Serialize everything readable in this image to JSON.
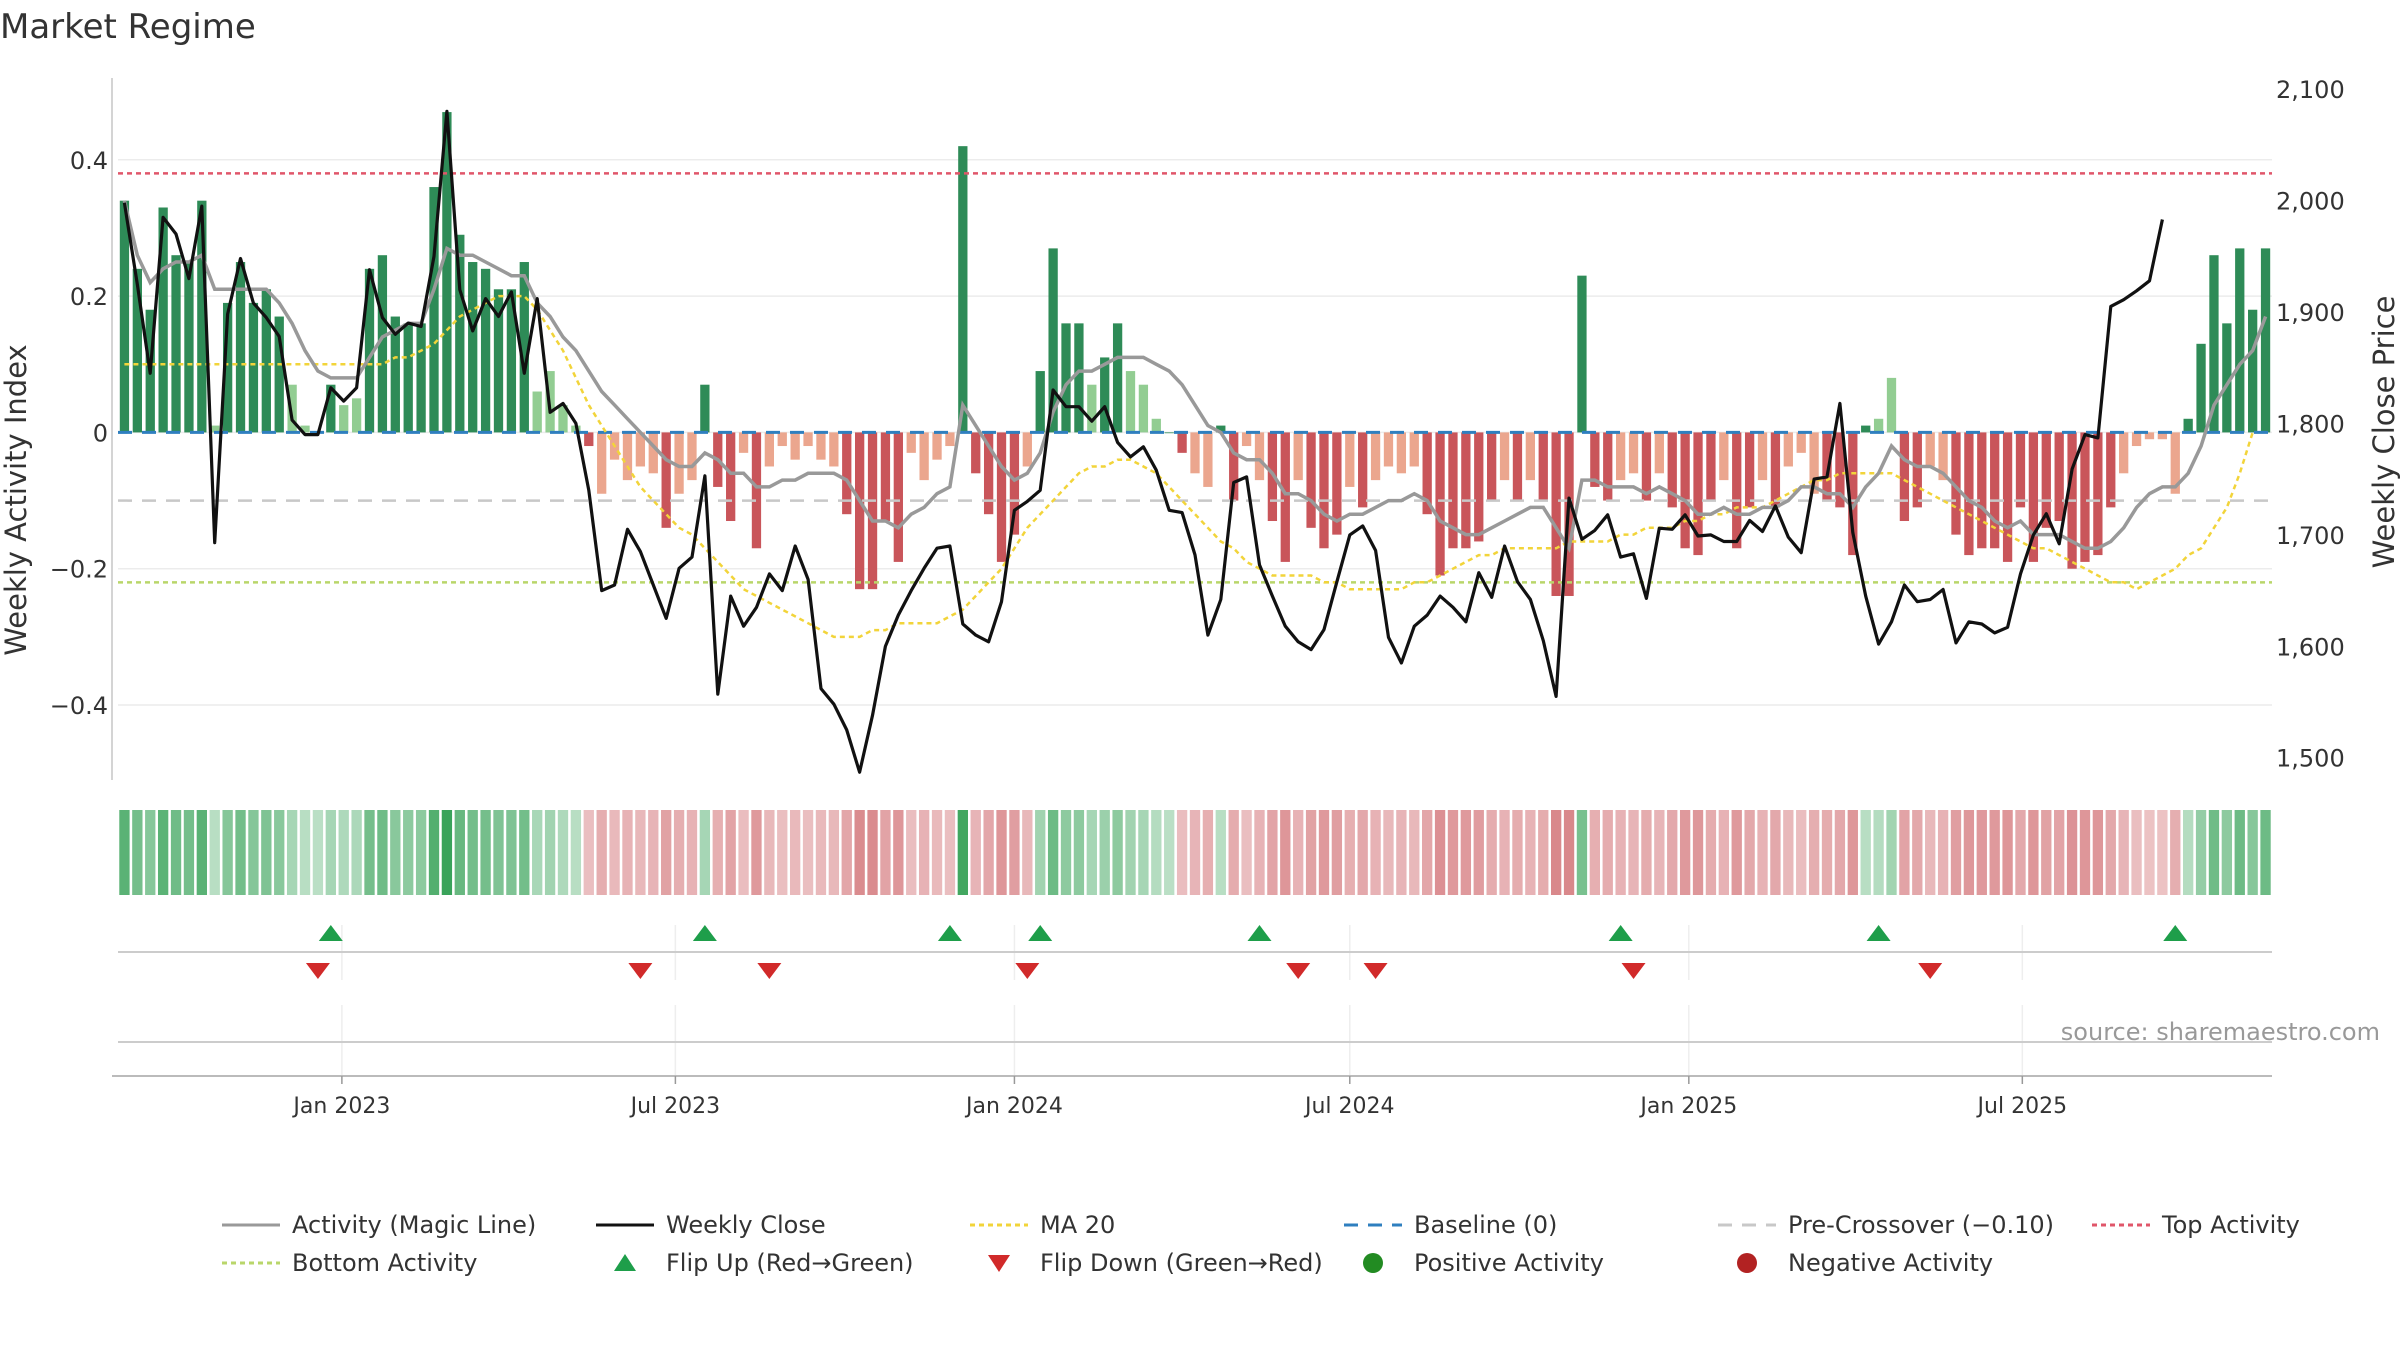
{
  "title": "Market Regime",
  "source": "source: sharemaestro.com",
  "colors": {
    "posStrong": "#2e8b57",
    "posLight": "#7fc47f",
    "negStrong": "#c9555a",
    "negLight": "#e8967a",
    "close": "#111111",
    "magic": "#999999",
    "ma": "#f2d43a",
    "baseline": "#2f7fbf",
    "preCross": "#c8c8c8",
    "top": "#e0566a",
    "bottom": "#b9d66a",
    "flipUp": "#1e9e4a",
    "flipDown": "#d12a2a"
  },
  "chart_data": {
    "type": "bar",
    "title": "Market Regime",
    "x_axis": {
      "start": "2022-09-05",
      "frequency": "weekly",
      "tick_labels": [
        "Jan 2023",
        "Jul 2023",
        "Jan 2024",
        "Jul 2024",
        "Jan 2025",
        "Jul 2025"
      ],
      "tick_dates": [
        "2023-01-01",
        "2023-07-01",
        "2024-01-01",
        "2024-07-01",
        "2025-01-01",
        "2025-07-01"
      ]
    },
    "y_left": {
      "label": "Weekly Activity Index",
      "range": [
        -0.51,
        0.52
      ],
      "ticks": [
        0.4,
        0.2,
        0,
        -0.2,
        -0.4
      ],
      "tick_labels": [
        "0.4",
        "0.2",
        "0",
        "−0.2",
        "−0.4"
      ]
    },
    "y_right": {
      "label": "Weekly Close Price",
      "range": [
        1480,
        2110
      ],
      "ticks": [
        2100,
        2000,
        1900,
        1800,
        1700,
        1600,
        1500
      ],
      "tick_labels": [
        "2,100",
        "2,000",
        "1,900",
        "1,800",
        "1,700",
        "1,600",
        "1,500"
      ]
    },
    "reference_lines": {
      "top": 0.38,
      "bottom": -0.22,
      "baseline": 0,
      "pre_crossover": -0.1
    },
    "activity": [
      0.34,
      0.24,
      0.18,
      0.33,
      0.26,
      0.25,
      0.34,
      0.01,
      0.19,
      0.25,
      0.19,
      0.21,
      0.17,
      0.07,
      0.01,
      0.0,
      0.07,
      0.04,
      0.05,
      0.24,
      0.26,
      0.17,
      0.16,
      0.16,
      0.36,
      0.47,
      0.29,
      0.25,
      0.24,
      0.21,
      0.21,
      0.25,
      0.06,
      0.09,
      0.04,
      0.01,
      -0.02,
      -0.09,
      -0.04,
      -0.07,
      -0.05,
      -0.06,
      -0.14,
      -0.09,
      -0.07,
      0.07,
      -0.08,
      -0.13,
      -0.03,
      -0.17,
      -0.05,
      -0.02,
      -0.04,
      -0.02,
      -0.04,
      -0.05,
      -0.12,
      -0.23,
      -0.23,
      -0.13,
      -0.19,
      -0.03,
      -0.07,
      -0.04,
      -0.02,
      0.42,
      -0.06,
      -0.12,
      -0.19,
      -0.15,
      -0.05,
      0.09,
      0.27,
      0.16,
      0.16,
      0.07,
      0.11,
      0.16,
      0.09,
      0.07,
      0.02,
      0.0,
      -0.03,
      -0.06,
      -0.08,
      0.01,
      -0.1,
      -0.02,
      -0.07,
      -0.13,
      -0.19,
      -0.07,
      -0.14,
      -0.17,
      -0.15,
      -0.08,
      -0.11,
      -0.07,
      -0.05,
      -0.06,
      -0.05,
      -0.12,
      -0.21,
      -0.17,
      -0.17,
      -0.16,
      -0.1,
      -0.07,
      -0.1,
      -0.07,
      -0.1,
      -0.24,
      -0.24,
      0.23,
      -0.08,
      -0.1,
      -0.07,
      -0.06,
      -0.1,
      -0.06,
      -0.11,
      -0.17,
      -0.18,
      -0.1,
      -0.07,
      -0.17,
      -0.11,
      -0.07,
      -0.11,
      -0.05,
      -0.03,
      -0.09,
      -0.1,
      -0.11,
      -0.18,
      0.01,
      0.02,
      0.08,
      -0.13,
      -0.11,
      -0.05,
      -0.07,
      -0.15,
      -0.18,
      -0.17,
      -0.17,
      -0.19,
      -0.11,
      -0.19,
      -0.14,
      -0.13,
      -0.2,
      -0.19,
      -0.18,
      -0.11,
      -0.06,
      -0.02,
      -0.01,
      -0.01,
      -0.09,
      0.02,
      0.13,
      0.26,
      0.16,
      0.27,
      0.18,
      0.27
    ],
    "series": [
      {
        "name": "Weekly Close",
        "values": [
          1998,
          1925,
          1845,
          1985,
          1970,
          1930,
          1995,
          1693,
          1898,
          1948,
          1908,
          1895,
          1878,
          1803,
          1790,
          1790,
          1832,
          1820,
          1832,
          1938,
          1895,
          1880,
          1890,
          1887,
          1950,
          2080,
          1920,
          1883,
          1912,
          1896,
          1918,
          1845,
          1912,
          1810,
          1818,
          1800,
          1740,
          1650,
          1655,
          1705,
          1685,
          1655,
          1625,
          1670,
          1680,
          1753,
          1557,
          1645,
          1618,
          1635,
          1665,
          1650,
          1690,
          1660,
          1562,
          1548,
          1525,
          1487,
          1538,
          1600,
          1628,
          1650,
          1670,
          1688,
          1690,
          1620,
          1610,
          1604,
          1640,
          1722,
          1730,
          1740,
          1830,
          1815,
          1815,
          1802,
          1815,
          1783,
          1770,
          1779,
          1758,
          1722,
          1720,
          1682,
          1610,
          1642,
          1747,
          1752,
          1673,
          1645,
          1618,
          1604,
          1597,
          1615,
          1658,
          1700,
          1708,
          1686,
          1608,
          1585,
          1618,
          1628,
          1645,
          1635,
          1622,
          1666,
          1644,
          1690,
          1658,
          1642,
          1605,
          1555,
          1733,
          1696,
          1704,
          1718,
          1680,
          1683,
          1643,
          1706,
          1705,
          1718,
          1699,
          1700,
          1694,
          1694,
          1713,
          1703,
          1726,
          1698,
          1684,
          1750,
          1752,
          1818,
          1702,
          1645,
          1602,
          1622,
          1655,
          1640,
          1642,
          1651,
          1603,
          1622,
          1620,
          1612,
          1617,
          1665,
          1700,
          1719,
          1692,
          1759,
          1790,
          1787,
          1905,
          1911,
          1919,
          1928,
          1983
        ]
      },
      {
        "name": "Activity (Magic Line)",
        "values": [
          0.34,
          0.26,
          0.22,
          0.24,
          0.25,
          0.25,
          0.26,
          0.21,
          0.21,
          0.21,
          0.21,
          0.21,
          0.19,
          0.16,
          0.12,
          0.09,
          0.08,
          0.08,
          0.08,
          0.11,
          0.14,
          0.15,
          0.16,
          0.16,
          0.21,
          0.27,
          0.26,
          0.26,
          0.25,
          0.24,
          0.23,
          0.23,
          0.19,
          0.17,
          0.14,
          0.12,
          0.09,
          0.06,
          0.04,
          0.02,
          0.0,
          -0.02,
          -0.04,
          -0.05,
          -0.05,
          -0.03,
          -0.04,
          -0.06,
          -0.06,
          -0.08,
          -0.08,
          -0.07,
          -0.07,
          -0.06,
          -0.06,
          -0.06,
          -0.07,
          -0.1,
          -0.13,
          -0.13,
          -0.14,
          -0.12,
          -0.11,
          -0.09,
          -0.08,
          0.04,
          0.01,
          -0.02,
          -0.05,
          -0.07,
          -0.06,
          -0.03,
          0.03,
          0.07,
          0.09,
          0.09,
          0.1,
          0.11,
          0.11,
          0.11,
          0.1,
          0.09,
          0.07,
          0.04,
          0.01,
          0.0,
          -0.03,
          -0.04,
          -0.04,
          -0.06,
          -0.09,
          -0.09,
          -0.1,
          -0.12,
          -0.13,
          -0.12,
          -0.12,
          -0.11,
          -0.1,
          -0.1,
          -0.09,
          -0.1,
          -0.13,
          -0.14,
          -0.15,
          -0.15,
          -0.14,
          -0.13,
          -0.12,
          -0.11,
          -0.11,
          -0.14,
          -0.17,
          -0.07,
          -0.07,
          -0.08,
          -0.08,
          -0.08,
          -0.09,
          -0.08,
          -0.09,
          -0.1,
          -0.12,
          -0.12,
          -0.11,
          -0.12,
          -0.12,
          -0.11,
          -0.11,
          -0.1,
          -0.08,
          -0.08,
          -0.09,
          -0.09,
          -0.11,
          -0.08,
          -0.06,
          -0.02,
          -0.04,
          -0.05,
          -0.05,
          -0.06,
          -0.08,
          -0.1,
          -0.11,
          -0.13,
          -0.14,
          -0.13,
          -0.15,
          -0.15,
          -0.15,
          -0.16,
          -0.17,
          -0.17,
          -0.16,
          -0.14,
          -0.11,
          -0.09,
          -0.08,
          -0.08,
          -0.06,
          -0.02,
          0.04,
          0.07,
          0.1,
          0.12,
          0.17
        ]
      },
      {
        "name": "MA 20",
        "values": [
          0.1,
          0.1,
          0.1,
          0.1,
          0.1,
          0.1,
          0.1,
          0.1,
          0.1,
          0.1,
          0.1,
          0.1,
          0.1,
          0.1,
          0.1,
          0.1,
          0.1,
          0.1,
          0.1,
          0.1,
          0.1,
          0.11,
          0.11,
          0.12,
          0.13,
          0.15,
          0.17,
          0.18,
          0.19,
          0.2,
          0.2,
          0.2,
          0.18,
          0.15,
          0.12,
          0.08,
          0.04,
          0.01,
          -0.02,
          -0.05,
          -0.08,
          -0.1,
          -0.12,
          -0.14,
          -0.15,
          -0.17,
          -0.19,
          -0.21,
          -0.23,
          -0.24,
          -0.25,
          -0.26,
          -0.27,
          -0.28,
          -0.29,
          -0.3,
          -0.3,
          -0.3,
          -0.29,
          -0.29,
          -0.28,
          -0.28,
          -0.28,
          -0.28,
          -0.27,
          -0.26,
          -0.24,
          -0.22,
          -0.2,
          -0.17,
          -0.14,
          -0.12,
          -0.1,
          -0.08,
          -0.06,
          -0.05,
          -0.05,
          -0.04,
          -0.04,
          -0.05,
          -0.06,
          -0.08,
          -0.1,
          -0.12,
          -0.14,
          -0.16,
          -0.17,
          -0.19,
          -0.2,
          -0.21,
          -0.21,
          -0.21,
          -0.21,
          -0.22,
          -0.22,
          -0.23,
          -0.23,
          -0.23,
          -0.23,
          -0.23,
          -0.22,
          -0.22,
          -0.21,
          -0.2,
          -0.19,
          -0.18,
          -0.18,
          -0.17,
          -0.17,
          -0.17,
          -0.17,
          -0.17,
          -0.16,
          -0.16,
          -0.16,
          -0.16,
          -0.15,
          -0.15,
          -0.14,
          -0.14,
          -0.14,
          -0.13,
          -0.13,
          -0.12,
          -0.12,
          -0.11,
          -0.11,
          -0.11,
          -0.1,
          -0.09,
          -0.08,
          -0.07,
          -0.07,
          -0.06,
          -0.06,
          -0.06,
          -0.06,
          -0.06,
          -0.07,
          -0.08,
          -0.09,
          -0.1,
          -0.11,
          -0.12,
          -0.13,
          -0.14,
          -0.15,
          -0.16,
          -0.17,
          -0.17,
          -0.18,
          -0.19,
          -0.2,
          -0.21,
          -0.22,
          -0.22,
          -0.23,
          -0.22,
          -0.21,
          -0.2,
          -0.18,
          -0.17,
          -0.14,
          -0.11,
          -0.06,
          0.0
        ]
      }
    ],
    "flip_up_weeks": [
      16,
      45,
      64,
      71,
      88,
      116,
      136,
      159
    ],
    "flip_down_weeks": [
      15,
      40,
      50,
      70,
      91,
      97,
      117,
      140
    ]
  },
  "legend": [
    {
      "label": "Activity (Magic Line)",
      "kind": "line",
      "color": "#999999",
      "dash": ""
    },
    {
      "label": "Weekly Close",
      "kind": "line",
      "color": "#111111",
      "dash": ""
    },
    {
      "label": "MA 20",
      "kind": "line",
      "color": "#f2d43a",
      "dash": "5 4"
    },
    {
      "label": "Baseline (0)",
      "kind": "line",
      "color": "#2f7fbf",
      "dash": "14 10"
    },
    {
      "label": "Pre-Crossover (−0.10)",
      "kind": "line",
      "color": "#c8c8c8",
      "dash": "14 10"
    },
    {
      "label": "Top Activity",
      "kind": "line",
      "color": "#e0566a",
      "dash": "5 4"
    },
    {
      "label": "Bottom Activity",
      "kind": "line",
      "color": "#b9d66a",
      "dash": "5 4"
    },
    {
      "label": "Flip Up (Red→Green)",
      "kind": "tri-up",
      "color": "#1e9e4a",
      "dash": ""
    },
    {
      "label": "Flip Down (Green→Red)",
      "kind": "tri-down",
      "color": "#d12a2a",
      "dash": ""
    },
    {
      "label": "Positive Activity",
      "kind": "dot",
      "color": "#228b22",
      "dash": ""
    },
    {
      "label": "Negative Activity",
      "kind": "dot",
      "color": "#b22222",
      "dash": ""
    }
  ]
}
